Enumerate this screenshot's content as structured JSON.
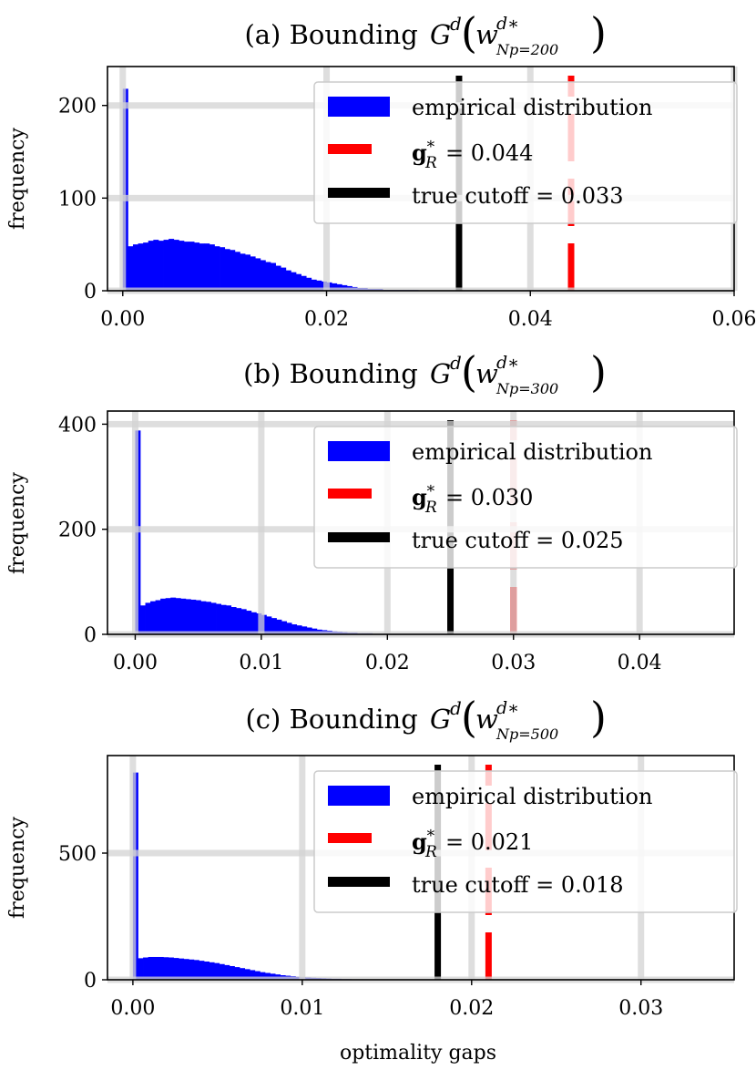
{
  "chart_data": [
    {
      "type": "bar",
      "title_prefix": "(a) Bounding ",
      "title_sub": "Np=200",
      "xlabel": "",
      "ylabel": "frequency",
      "xlim": [
        -0.0015,
        0.06
      ],
      "ylim": [
        0,
        242
      ],
      "xticks": [
        0.0,
        0.02,
        0.04,
        0.06
      ],
      "xtick_labels": [
        "0.00",
        "0.02",
        "0.04",
        "0.06"
      ],
      "yticks": [
        0,
        100,
        200
      ],
      "ytick_labels": [
        "0",
        "100",
        "200"
      ],
      "grid": true,
      "legend_position": "upper-right",
      "bin_width": 0.0005,
      "histogram": [
        218,
        48,
        50,
        51,
        52,
        54,
        55,
        54,
        55,
        56,
        55,
        54,
        53,
        53,
        52,
        51,
        51,
        50,
        48,
        47,
        45,
        44,
        42,
        40,
        39,
        37,
        35,
        33,
        31,
        30,
        27,
        25,
        22,
        20,
        18,
        16,
        14,
        12,
        11,
        10,
        9,
        8,
        7,
        6,
        5,
        4,
        3,
        3,
        2,
        2,
        2,
        1,
        1,
        1,
        1,
        1,
        1,
        1,
        0,
        0,
        0,
        0,
        0,
        0,
        0
      ],
      "gR_value": 0.044,
      "cutoff_value": 0.033,
      "legend": {
        "empirical": "empirical distribution",
        "gR": "= 0.044",
        "cutoff": "true cutoff = 0.033"
      }
    },
    {
      "type": "bar",
      "title_prefix": "(b) Bounding ",
      "title_sub": "Np=300",
      "xlabel": "",
      "ylabel": "frequency",
      "xlim": [
        -0.0022,
        0.0475
      ],
      "ylim": [
        0,
        425
      ],
      "xticks": [
        0.0,
        0.01,
        0.02,
        0.03,
        0.04
      ],
      "xtick_labels": [
        "0.00",
        "0.01",
        "0.02",
        "0.03",
        "0.04"
      ],
      "yticks": [
        0,
        200,
        400
      ],
      "ytick_labels": [
        "0",
        "200",
        "400"
      ],
      "grid": true,
      "legend_position": "upper-right",
      "bin_width": 0.0004,
      "histogram": [
        388,
        55,
        60,
        63,
        65,
        68,
        69,
        70,
        69,
        68,
        67,
        66,
        65,
        63,
        62,
        60,
        58,
        56,
        55,
        52,
        50,
        48,
        45,
        42,
        40,
        37,
        34,
        31,
        28,
        25,
        22,
        19,
        17,
        15,
        13,
        11,
        9,
        8,
        7,
        6,
        5,
        4,
        3,
        3,
        2,
        2,
        2,
        1,
        1,
        1,
        1,
        1,
        1,
        1,
        1,
        1,
        1,
        1,
        1,
        1,
        1,
        1,
        0
      ],
      "gR_value": 0.03,
      "cutoff_value": 0.025,
      "legend": {
        "empirical": "empirical distribution",
        "gR": "= 0.030",
        "cutoff": "true cutoff = 0.025"
      }
    },
    {
      "type": "bar",
      "title_prefix": "(c) Bounding ",
      "title_sub": "Np=500",
      "xlabel": "optimality gaps",
      "ylabel": "frequency",
      "xlim": [
        -0.0015,
        0.0355
      ],
      "ylim": [
        0,
        885
      ],
      "xticks": [
        0.0,
        0.01,
        0.02,
        0.03
      ],
      "xtick_labels": [
        "0.00",
        "0.01",
        "0.02",
        "0.03"
      ],
      "yticks": [
        0,
        500
      ],
      "ytick_labels": [
        "0",
        "500"
      ],
      "grid": true,
      "legend_position": "upper-right",
      "bin_width": 0.0003,
      "histogram": [
        818,
        85,
        88,
        90,
        90,
        90,
        89,
        88,
        86,
        84,
        82,
        80,
        78,
        75,
        72,
        69,
        66,
        62,
        58,
        54,
        50,
        46,
        42,
        38,
        34,
        30,
        27,
        24,
        21,
        18,
        16,
        14,
        12,
        10,
        9,
        8,
        7,
        6,
        5,
        4,
        4,
        3,
        3,
        2,
        2,
        2,
        1,
        1,
        1,
        1,
        1,
        1,
        1,
        1,
        1,
        1,
        1,
        1,
        0
      ],
      "gR_value": 0.021,
      "cutoff_value": 0.018,
      "legend": {
        "empirical": "empirical distribution",
        "gR": "= 0.021",
        "cutoff": "true cutoff = 0.018"
      }
    }
  ],
  "colors": {
    "histogram": "#0000ff",
    "gR_line": "#ff0000",
    "cutoff_line": "#000000",
    "grid": "#d3d3d3"
  }
}
